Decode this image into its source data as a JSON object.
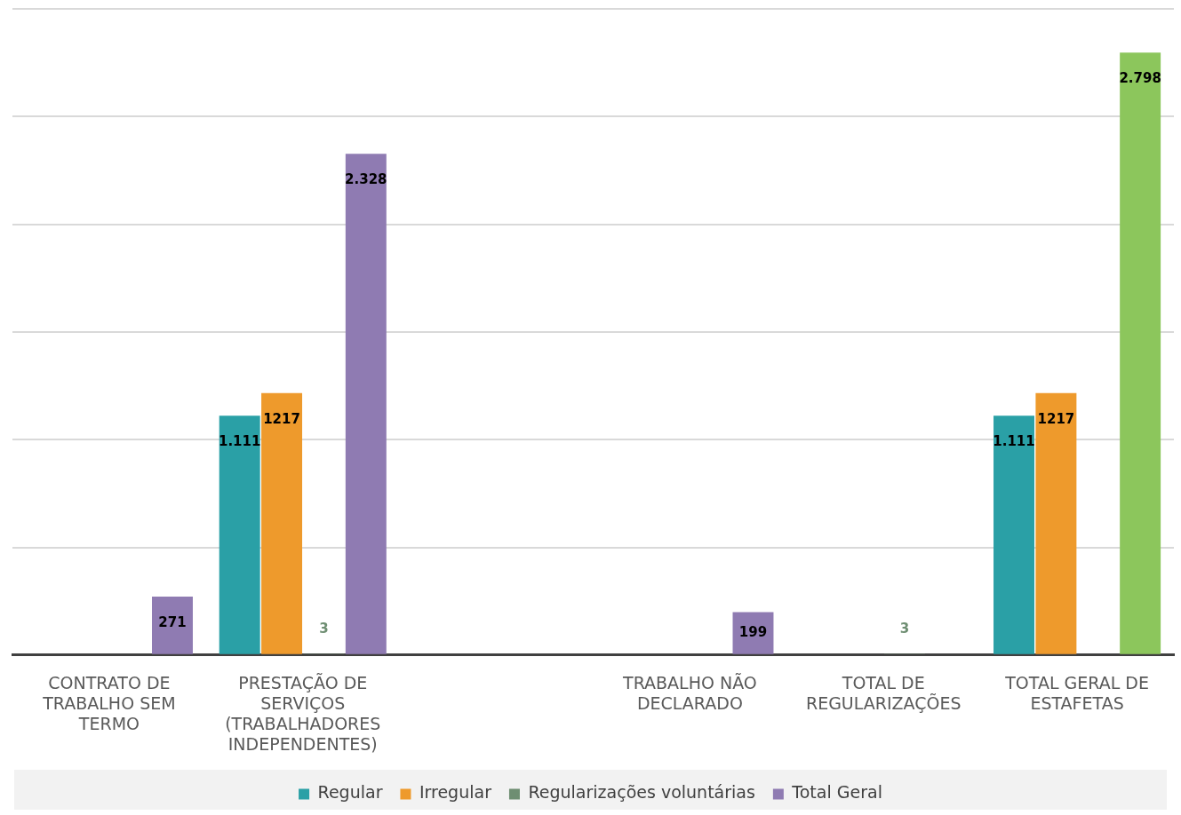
{
  "chart_data": {
    "type": "bar",
    "categories": [
      "CONTRATO DE TRABALHO SEM TERMO",
      "PRESTAÇÃO DE SERVIÇOS (TRABALHADORES INDEPENDENTES)",
      null,
      "TRABALHO NÃO DECLARADO",
      "TOTAL DE REGULARIZAÇÕES",
      "TOTAL GERAL DE ESTAFETAS"
    ],
    "series": [
      {
        "name": "Regular",
        "color": "#2aa0a6",
        "values": [
          null,
          1111,
          null,
          null,
          null,
          1111
        ],
        "value_labels": [
          null,
          "1.111",
          null,
          null,
          null,
          "1.111"
        ]
      },
      {
        "name": "Irregular",
        "color": "#ee9a2c",
        "values": [
          null,
          1217,
          null,
          null,
          null,
          1217
        ],
        "value_labels": [
          null,
          "1217",
          null,
          null,
          null,
          "1217"
        ]
      },
      {
        "name": "Regularizações voluntárias",
        "color": "#6e8e72",
        "values": [
          null,
          3,
          null,
          null,
          3,
          null
        ],
        "value_labels": [
          null,
          "3",
          null,
          null,
          "3",
          null
        ]
      },
      {
        "name": "Total Geral",
        "color": "#8f7bb2",
        "colors": [
          "#8f7bb2",
          "#8f7bb2",
          "#8f7bb2",
          "#8f7bb2",
          "#8f7bb2",
          "#8cc65c"
        ],
        "values": [
          271,
          2328,
          null,
          199,
          null,
          2798
        ],
        "value_labels": [
          "271",
          "2.328",
          null,
          "199",
          null,
          "2.798"
        ]
      }
    ],
    "ylim": [
      0,
      3000
    ],
    "yticks": [
      {
        "value": 0,
        "label": null
      },
      {
        "value": 500,
        "label": null
      },
      {
        "value": 1000,
        "label": null
      },
      {
        "value": 1500,
        "label": null
      },
      {
        "value": 2000,
        "label": null
      },
      {
        "value": 2500,
        "label": null
      },
      {
        "value": 3000,
        "label": null
      }
    ],
    "grid": "y",
    "legend": "bottom"
  }
}
